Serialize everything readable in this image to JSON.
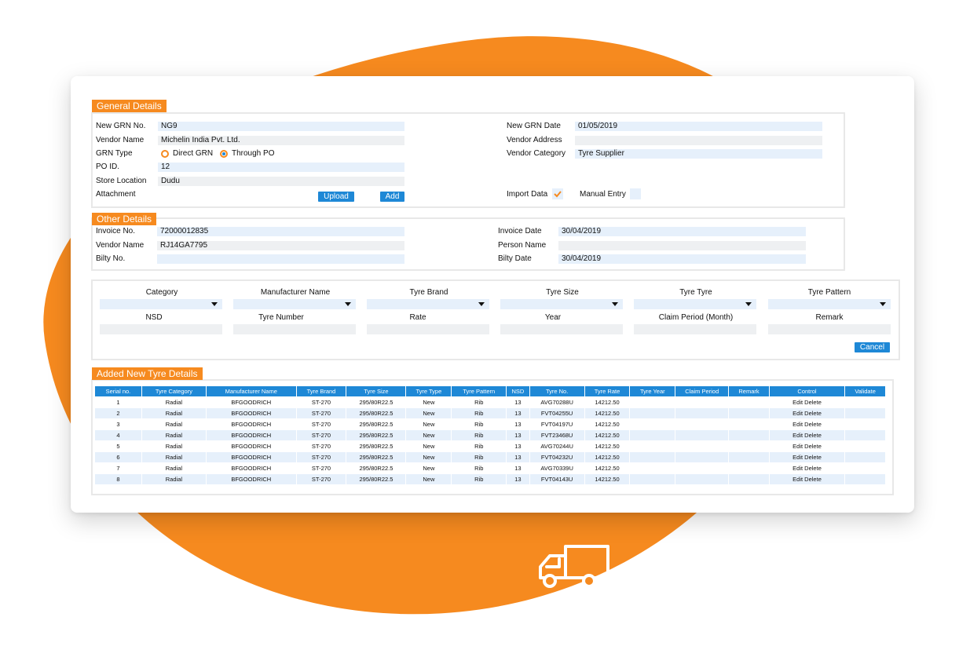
{
  "general": {
    "title": "General Details",
    "grn_no_label": "New GRN No.",
    "grn_no_value": "NG9",
    "vendor_name_label": "Vendor Name",
    "vendor_name_value": "Michelin India Pvt. Ltd.",
    "grn_type_label": "GRN Type",
    "radio_direct": "Direct GRN",
    "radio_through": "Through PO",
    "po_id_label": "PO ID.",
    "po_id_value": "12",
    "store_location_label": "Store Location",
    "store_location_value": "Dudu",
    "attachment_label": "Attachment",
    "upload_label": "Upload",
    "add_label": "Add",
    "grn_date_label": "New GRN Date",
    "grn_date_value": "01/05/2019",
    "vendor_address_label": "Vendor Address",
    "vendor_address_value": "",
    "vendor_category_label": "Vendor Category",
    "vendor_category_value": "Tyre Supplier",
    "import_data_label": "Import Data",
    "manual_entry_label": "Manual Entry"
  },
  "other": {
    "title": "Other Details",
    "invoice_no_label": "Invoice No.",
    "invoice_no_value": "72000012835",
    "vendor_name_label": "Vendor Name",
    "vendor_name_value": "RJ14GA7795",
    "bilty_no_label": "Bilty No.",
    "bilty_no_value": "",
    "invoice_date_label": "Invoice Date",
    "invoice_date_value": "30/04/2019",
    "person_name_label": "Person Name",
    "person_name_value": "",
    "bilty_date_label": "Bilty Date",
    "bilty_date_value": "30/04/2019"
  },
  "entry": {
    "row1": [
      "Category",
      "Manufacturer Name",
      "Tyre Brand",
      "Tyre Size",
      "Tyre Tyre",
      "Tyre Pattern"
    ],
    "row2": [
      "NSD",
      "Tyre Number",
      "Rate",
      "Year",
      "Claim Period (Month)",
      "Remark"
    ],
    "cancel_label": "Cancel"
  },
  "added": {
    "title": "Added New Tyre Details",
    "columns": [
      "Serial no.",
      "Tyre Category",
      "Manufacturer Name",
      "Tyre Brand",
      "Tyre Size",
      "Tyre Type",
      "Tyre Pattern",
      "NSD",
      "Tyre No.",
      "Tyre Rate",
      "Tyre Year",
      "Claim Period",
      "Remark",
      "Control",
      "Validate"
    ],
    "rows": [
      [
        "1",
        "Radial",
        "BFGOODRICH",
        "ST-270",
        "295/80R22.5",
        "New",
        "Rib",
        "13",
        "AVG70288U",
        "14212.50",
        "",
        "",
        "",
        "Edit Delete",
        ""
      ],
      [
        "2",
        "Radial",
        "BFGOODRICH",
        "ST-270",
        "295/80R22.5",
        "New",
        "Rib",
        "13",
        "FVT04255U",
        "14212.50",
        "",
        "",
        "",
        "Edit Delete",
        ""
      ],
      [
        "3",
        "Radial",
        "BFGOODRICH",
        "ST-270",
        "295/80R22.5",
        "New",
        "Rib",
        "13",
        "FVT04197U",
        "14212.50",
        "",
        "",
        "",
        "Edit Delete",
        ""
      ],
      [
        "4",
        "Radial",
        "BFGOODRICH",
        "ST-270",
        "295/80R22.5",
        "New",
        "Rib",
        "13",
        "FVT23468U",
        "14212.50",
        "",
        "",
        "",
        "Edit Delete",
        ""
      ],
      [
        "5",
        "Radial",
        "BFGOODRICH",
        "ST-270",
        "295/80R22.5",
        "New",
        "Rib",
        "13",
        "AVG70244U",
        "14212.50",
        "",
        "",
        "",
        "Edit Delete",
        ""
      ],
      [
        "6",
        "Radial",
        "BFGOODRICH",
        "ST-270",
        "295/80R22.5",
        "New",
        "Rib",
        "13",
        "FVT04232U",
        "14212.50",
        "",
        "",
        "",
        "Edit Delete",
        ""
      ],
      [
        "7",
        "Radial",
        "BFGOODRICH",
        "ST-270",
        "295/80R22.5",
        "New",
        "Rib",
        "13",
        "AVG70339U",
        "14212.50",
        "",
        "",
        "",
        "Edit Delete",
        ""
      ],
      [
        "8",
        "Radial",
        "BFGOODRICH",
        "ST-270",
        "295/80R22.5",
        "New",
        "Rib",
        "13",
        "FVT04143U",
        "14212.50",
        "",
        "",
        "",
        "Edit Delete",
        ""
      ]
    ]
  },
  "colors": {
    "accent": "#f68a1f",
    "primary": "#1e88d6",
    "field": "#e6f0fb"
  },
  "icons": {
    "footer": "truck-icon"
  }
}
